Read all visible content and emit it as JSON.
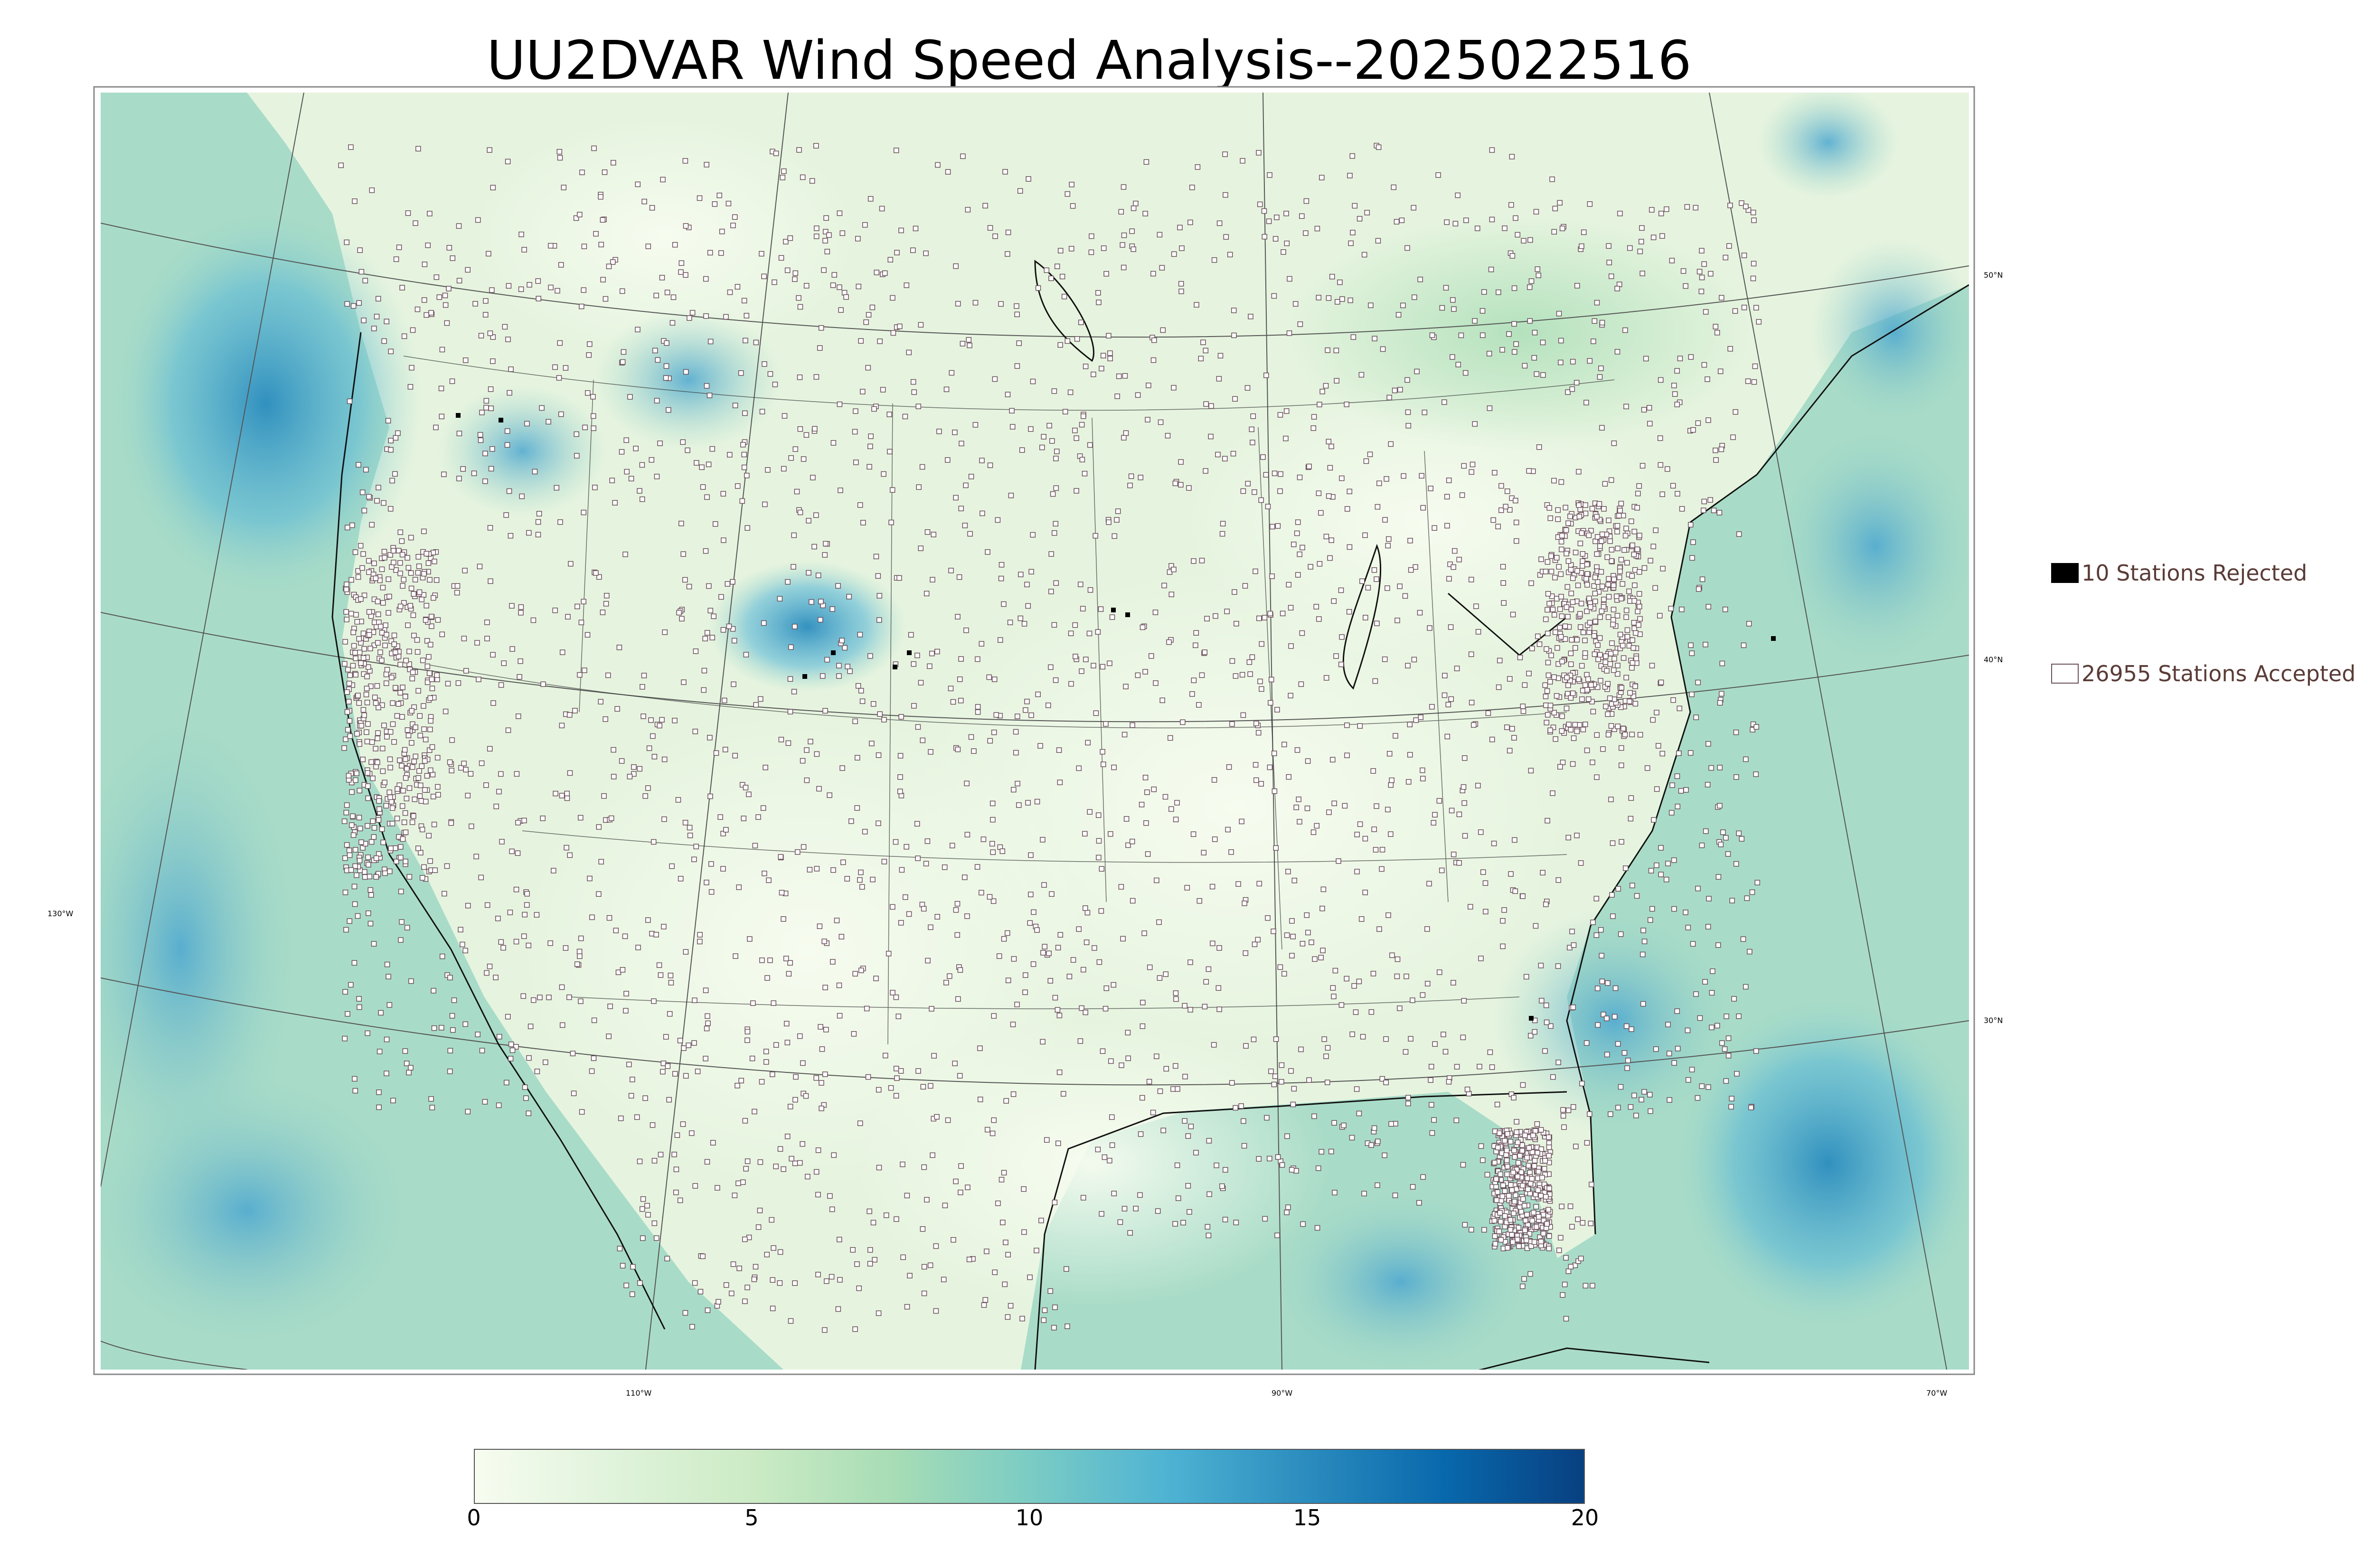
{
  "title": "UU2DVAR Wind Speed Analysis--2025022516",
  "legend": {
    "rejected": {
      "label": "10 Stations Rejected",
      "color": "#000000"
    },
    "accepted": {
      "label": "26955 Stations Accepted",
      "color": "#ffffff"
    }
  },
  "graticule": {
    "lat_labels": [
      "50°N",
      "40°N",
      "30°N"
    ],
    "lon_labels": [
      "130°W",
      "110°W",
      "90°W",
      "70°W"
    ]
  },
  "colorbar": {
    "ticks": [
      "0",
      "5",
      "10",
      "15",
      "20"
    ],
    "min": 0,
    "max": 20,
    "colors": [
      "#f7fcf0",
      "#e0f3db",
      "#ccebc5",
      "#a8ddb5",
      "#7bccc4",
      "#4eb3d3",
      "#2b8cbe",
      "#0868ac",
      "#084081"
    ]
  },
  "colors": {
    "land": "#eaf6e4",
    "ocean": "#9fd6c6",
    "strong_wind": "#2b8cbe",
    "station_border": "#6a4f5a"
  }
}
